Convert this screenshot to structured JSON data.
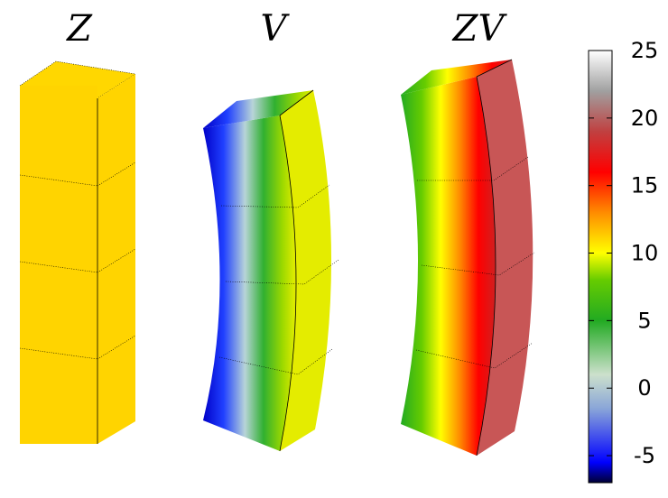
{
  "panels": [
    {
      "title": "Z",
      "color_value": 11
    },
    {
      "title": "V",
      "color_range": [
        -6,
        10
      ]
    },
    {
      "title": "ZV",
      "color_range": [
        5,
        19
      ]
    }
  ],
  "colorbar": {
    "ticks": [
      "-5",
      "0",
      "5",
      "10",
      "15",
      "20",
      "25"
    ],
    "range": [
      -7,
      25
    ],
    "stops": [
      {
        "value": -7,
        "color": "#000033"
      },
      {
        "value": -5.5,
        "color": "#0000ff"
      },
      {
        "value": -1.5,
        "color": "#8aa6d8"
      },
      {
        "value": 1,
        "color": "#cce0cc"
      },
      {
        "value": 5,
        "color": "#22aa22"
      },
      {
        "value": 8,
        "color": "#66cc00"
      },
      {
        "value": 10,
        "color": "#ffff00"
      },
      {
        "value": 13,
        "color": "#ff8c00"
      },
      {
        "value": 16,
        "color": "#ff0000"
      },
      {
        "value": 19,
        "color": "#c04040"
      },
      {
        "value": 22,
        "color": "#a0a0a0"
      },
      {
        "value": 25,
        "color": "#ffffff"
      }
    ]
  }
}
